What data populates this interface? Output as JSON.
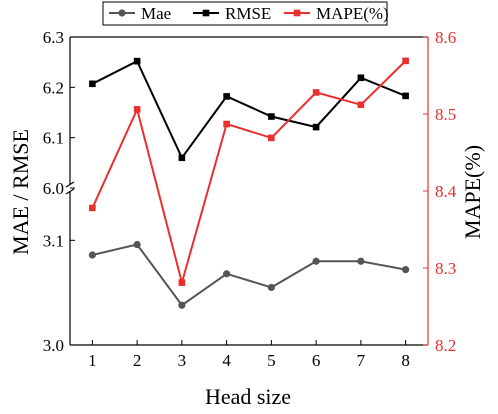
{
  "chart_data": {
    "type": "line",
    "xlabel": "Head size",
    "ylabel_left": "MAE / RMSE",
    "ylabel_right": "MAPE(%)",
    "x": [
      1,
      2,
      3,
      4,
      5,
      6,
      7,
      8
    ],
    "x_ticks": [
      "1",
      "2",
      "3",
      "4",
      "5",
      "6",
      "7",
      "8"
    ],
    "left_axis": {
      "broken": true,
      "lower_range": [
        3.0,
        3.15
      ],
      "upper_range": [
        6.0,
        6.3
      ],
      "lower_ticks": [
        "3.0",
        "3.1"
      ],
      "upper_ticks": [
        "6.0",
        "6.1",
        "6.2",
        "6.3"
      ]
    },
    "right_axis": {
      "range": [
        8.2,
        8.6
      ],
      "ticks": [
        "8.2",
        "8.3",
        "8.4",
        "8.5",
        "8.6"
      ],
      "color": "#e8302f"
    },
    "legend_position": "top",
    "series": [
      {
        "name": "Mae",
        "axis": "left",
        "marker": "circle",
        "color": "#555555",
        "values": [
          3.086,
          3.096,
          3.038,
          3.068,
          3.055,
          3.08,
          3.08,
          3.072
        ]
      },
      {
        "name": "RMSE",
        "axis": "left",
        "marker": "square",
        "color": "#000000",
        "values": [
          6.207,
          6.252,
          6.06,
          6.182,
          6.142,
          6.121,
          6.219,
          6.183
        ]
      },
      {
        "name": "MAPE(%)",
        "axis": "right",
        "marker": "square",
        "color": "#e8302f",
        "values": [
          8.378,
          8.506,
          8.281,
          8.487,
          8.469,
          8.528,
          8.512,
          8.569
        ]
      }
    ]
  }
}
